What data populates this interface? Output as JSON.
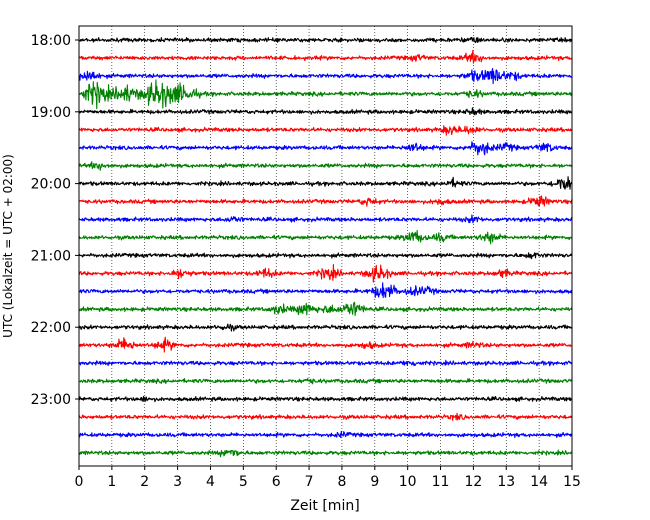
{
  "chart_data": {
    "type": "line",
    "title": "",
    "xlabel": "Zeit  [min]",
    "ylabel": "UTC (Lokalzeit = UTC + 02:00)",
    "xlim": [
      0,
      15
    ],
    "x_ticks": [
      0,
      1,
      2,
      3,
      4,
      5,
      6,
      7,
      8,
      9,
      10,
      11,
      12,
      13,
      14,
      15
    ],
    "y_tick_labels": [
      "18:00",
      "19:00",
      "20:00",
      "21:00",
      "22:00",
      "23:00"
    ],
    "grid": "vertical dotted at each minute",
    "trace_interval_min": 15,
    "color_cycle": [
      "#000000",
      "#ff0000",
      "#0000ff",
      "#008000"
    ],
    "traces": [
      {
        "start": "18:00",
        "color": "#000000",
        "bursts": [
          {
            "t": 12.0,
            "amp": 0.25
          }
        ]
      },
      {
        "start": "18:15",
        "color": "#ff0000",
        "bursts": [
          {
            "t": 12.0,
            "amp": 0.6
          },
          {
            "t": 10.3,
            "amp": 0.3
          }
        ]
      },
      {
        "start": "18:30",
        "color": "#0000ff",
        "bursts": [
          {
            "t": 0.3,
            "amp": 0.7
          },
          {
            "t": 12.0,
            "amp": 0.5
          },
          {
            "t": 12.6,
            "amp": 0.9
          },
          {
            "t": 13.2,
            "amp": 0.4
          }
        ]
      },
      {
        "start": "18:45",
        "color": "#008000",
        "bursts": [
          {
            "t": 0.5,
            "amp": 1.4
          },
          {
            "t": 1.4,
            "amp": 1.0
          },
          {
            "t": 2.4,
            "amp": 1.6
          },
          {
            "t": 3.0,
            "amp": 0.9
          },
          {
            "t": 3.4,
            "amp": 0.5
          },
          {
            "t": 12.0,
            "amp": 0.4
          }
        ]
      },
      {
        "start": "19:00",
        "color": "#000000",
        "bursts": [
          {
            "t": 12.0,
            "amp": 0.3
          }
        ]
      },
      {
        "start": "19:15",
        "color": "#ff0000",
        "bursts": [
          {
            "t": 11.3,
            "amp": 0.5
          },
          {
            "t": 11.9,
            "amp": 0.4
          }
        ]
      },
      {
        "start": "19:30",
        "color": "#0000ff",
        "bursts": [
          {
            "t": 10.2,
            "amp": 0.5
          },
          {
            "t": 12.2,
            "amp": 0.9
          },
          {
            "t": 13.0,
            "amp": 0.4
          },
          {
            "t": 14.2,
            "amp": 0.5
          }
        ]
      },
      {
        "start": "19:45",
        "color": "#008000",
        "bursts": [
          {
            "t": 0.6,
            "amp": 0.4
          }
        ]
      },
      {
        "start": "20:00",
        "color": "#000000",
        "bursts": [
          {
            "t": 11.4,
            "amp": 0.4
          },
          {
            "t": 14.8,
            "amp": 0.9
          }
        ]
      },
      {
        "start": "20:15",
        "color": "#ff0000",
        "bursts": [
          {
            "t": 8.8,
            "amp": 0.4
          },
          {
            "t": 11.0,
            "amp": 0.3
          },
          {
            "t": 14.0,
            "amp": 0.6
          }
        ]
      },
      {
        "start": "20:30",
        "color": "#0000ff",
        "bursts": [
          {
            "t": 4.7,
            "amp": 0.3
          },
          {
            "t": 12.0,
            "amp": 0.3
          }
        ]
      },
      {
        "start": "20:45",
        "color": "#008000",
        "bursts": [
          {
            "t": 10.2,
            "amp": 0.7
          },
          {
            "t": 11.0,
            "amp": 0.4
          },
          {
            "t": 12.5,
            "amp": 0.6
          }
        ]
      },
      {
        "start": "21:00",
        "color": "#000000",
        "bursts": [
          {
            "t": 13.8,
            "amp": 0.3
          }
        ]
      },
      {
        "start": "21:15",
        "color": "#ff0000",
        "bursts": [
          {
            "t": 3.1,
            "amp": 0.5
          },
          {
            "t": 5.7,
            "amp": 0.5
          },
          {
            "t": 7.6,
            "amp": 0.7
          },
          {
            "t": 9.1,
            "amp": 0.9
          },
          {
            "t": 12.9,
            "amp": 0.4
          }
        ]
      },
      {
        "start": "21:30",
        "color": "#0000ff",
        "bursts": [
          {
            "t": 9.3,
            "amp": 1.0
          },
          {
            "t": 10.2,
            "amp": 0.4
          },
          {
            "t": 10.6,
            "amp": 0.3
          }
        ]
      },
      {
        "start": "21:45",
        "color": "#008000",
        "bursts": [
          {
            "t": 6.1,
            "amp": 0.5
          },
          {
            "t": 6.9,
            "amp": 0.7
          },
          {
            "t": 7.6,
            "amp": 0.4
          },
          {
            "t": 8.3,
            "amp": 0.9
          }
        ]
      },
      {
        "start": "22:00",
        "color": "#000000",
        "bursts": [
          {
            "t": 4.5,
            "amp": 0.3
          }
        ]
      },
      {
        "start": "22:15",
        "color": "#ff0000",
        "bursts": [
          {
            "t": 1.4,
            "amp": 0.7
          },
          {
            "t": 2.6,
            "amp": 0.6
          },
          {
            "t": 8.8,
            "amp": 0.3
          },
          {
            "t": 12.0,
            "amp": 0.3
          }
        ]
      },
      {
        "start": "22:30",
        "color": "#0000ff",
        "bursts": [
          {
            "t": 10.1,
            "amp": 0.3
          }
        ]
      },
      {
        "start": "22:45",
        "color": "#008000",
        "bursts": [
          {
            "t": 7.0,
            "amp": 0.2
          }
        ]
      },
      {
        "start": "23:00",
        "color": "#000000",
        "bursts": [
          {
            "t": 2.0,
            "amp": 0.2
          }
        ]
      },
      {
        "start": "23:15",
        "color": "#ff0000",
        "bursts": [
          {
            "t": 11.5,
            "amp": 0.2
          }
        ]
      },
      {
        "start": "23:30",
        "color": "#0000ff",
        "bursts": [
          {
            "t": 8.0,
            "amp": 0.2
          }
        ]
      },
      {
        "start": "23:45",
        "color": "#008000",
        "bursts": [
          {
            "t": 4.6,
            "amp": 0.5
          }
        ]
      }
    ]
  }
}
